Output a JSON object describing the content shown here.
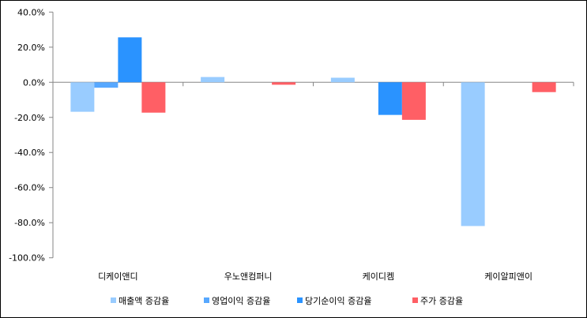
{
  "chart_data": {
    "type": "bar",
    "title": "",
    "xlabel": "",
    "ylabel": "",
    "categories": [
      "디케이앤디",
      "우노앤컴퍼니",
      "케이디켐",
      "케이알피앤이"
    ],
    "series": [
      {
        "name": "매출액 증감율",
        "color": "#99CCFF",
        "values": [
          -16.8,
          3.0,
          2.6,
          -81.9
        ]
      },
      {
        "name": "영업이익 증감율",
        "color": "#57A8FF",
        "values": [
          -3.1,
          0,
          0,
          0
        ]
      },
      {
        "name": "당기순이익 증감율",
        "color": "#2A93FF",
        "values": [
          25.6,
          0,
          -18.6,
          0
        ]
      },
      {
        "name": "주가 증감율",
        "color": "#FF5F65",
        "values": [
          -17.3,
          -1.4,
          -21.4,
          -5.6
        ]
      }
    ],
    "ylim": [
      -100,
      40
    ],
    "yticks": [
      40,
      20,
      0,
      -20,
      -40,
      -60,
      -80,
      -100
    ],
    "ytick_labels": [
      "40.0%",
      "20.0%",
      "0.0%",
      "-20.0%",
      "-40.0%",
      "-60.0%",
      "-80.0%",
      "-100.0%"
    ],
    "grid": false,
    "legend_position": "bottom"
  }
}
